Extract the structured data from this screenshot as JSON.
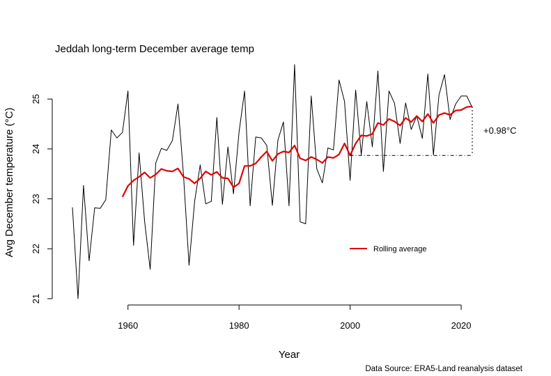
{
  "chart_data": {
    "type": "line",
    "title": "Jeddah long-term December average temp",
    "xlabel": "Year",
    "ylabel": "Avg December temperature (°C)",
    "source": "Data Source: ERA5-Land reanalysis dataset",
    "xlim": [
      1950,
      2022
    ],
    "ylim": [
      21,
      25.7
    ],
    "x_ticks": [
      1960,
      1980,
      2000,
      2020
    ],
    "y_ticks": [
      21,
      22,
      23,
      24,
      25
    ],
    "grid": false,
    "legend_position": "bottom-right",
    "series": [
      {
        "name": "",
        "color": "#000000",
        "x": [
          1950,
          1951,
          1952,
          1953,
          1954,
          1955,
          1956,
          1957,
          1958,
          1959,
          1960,
          1961,
          1962,
          1963,
          1964,
          1965,
          1966,
          1967,
          1968,
          1969,
          1970,
          1971,
          1972,
          1973,
          1974,
          1975,
          1976,
          1977,
          1978,
          1979,
          1980,
          1981,
          1982,
          1983,
          1984,
          1985,
          1986,
          1987,
          1988,
          1989,
          1990,
          1991,
          1992,
          1993,
          1994,
          1995,
          1996,
          1997,
          1998,
          1999,
          2000,
          2001,
          2002,
          2003,
          2004,
          2005,
          2006,
          2007,
          2008,
          2009,
          2010,
          2011,
          2012,
          2013,
          2014,
          2015,
          2016,
          2017,
          2018,
          2019,
          2020,
          2021,
          2022
        ],
        "values": [
          22.83,
          21.0,
          23.27,
          21.76,
          22.82,
          22.81,
          22.98,
          24.38,
          24.22,
          24.33,
          25.16,
          22.07,
          23.92,
          22.55,
          21.59,
          23.72,
          24.01,
          23.97,
          24.17,
          24.9,
          23.48,
          21.67,
          22.95,
          23.68,
          22.9,
          22.95,
          24.63,
          22.89,
          24.04,
          23.1,
          24.34,
          25.16,
          22.86,
          24.24,
          24.22,
          24.07,
          22.87,
          24.18,
          24.54,
          22.86,
          25.69,
          22.54,
          22.5,
          25.06,
          23.6,
          23.32,
          24.02,
          23.98,
          25.38,
          24.95,
          23.37,
          25.18,
          23.88,
          24.95,
          24.04,
          25.56,
          23.55,
          25.16,
          24.91,
          24.11,
          24.92,
          24.39,
          24.66,
          24.21,
          25.5,
          23.88,
          25.08,
          25.49,
          24.59,
          24.9,
          25.06,
          25.06,
          24.83
        ]
      },
      {
        "name": "Rolling average",
        "color": "#e00000",
        "x": [
          1959,
          1960,
          1961,
          1962,
          1963,
          1964,
          1965,
          1966,
          1967,
          1968,
          1969,
          1970,
          1971,
          1972,
          1973,
          1974,
          1975,
          1976,
          1977,
          1978,
          1979,
          1980,
          1981,
          1982,
          1983,
          1984,
          1985,
          1986,
          1987,
          1988,
          1989,
          1990,
          1991,
          1992,
          1993,
          1994,
          1995,
          1996,
          1997,
          1998,
          1999,
          2000,
          2001,
          2002,
          2003,
          2004,
          2005,
          2006,
          2007,
          2008,
          2009,
          2010,
          2011,
          2012,
          2013,
          2014,
          2015,
          2016,
          2017,
          2018,
          2019,
          2020,
          2021,
          2022
        ],
        "values": [
          23.04,
          23.26,
          23.37,
          23.44,
          23.53,
          23.42,
          23.49,
          23.6,
          23.56,
          23.55,
          23.61,
          23.44,
          23.4,
          23.31,
          23.41,
          23.55,
          23.48,
          23.54,
          23.42,
          23.41,
          23.23,
          23.31,
          23.66,
          23.66,
          23.71,
          23.84,
          23.95,
          23.76,
          23.9,
          23.95,
          23.93,
          24.07,
          23.81,
          23.77,
          23.84,
          23.79,
          23.72,
          23.84,
          23.82,
          23.89,
          24.11,
          23.87,
          24.11,
          24.27,
          24.26,
          24.3,
          24.52,
          24.48,
          24.6,
          24.55,
          24.47,
          24.62,
          24.54,
          24.66,
          24.55,
          24.7,
          24.52,
          24.68,
          24.72,
          24.68,
          24.77,
          24.78,
          24.84,
          24.85
        ]
      }
    ],
    "annotation": {
      "text": "+0.98°C",
      "x": 2022,
      "from_value": 23.87,
      "to_value": 24.85
    }
  }
}
